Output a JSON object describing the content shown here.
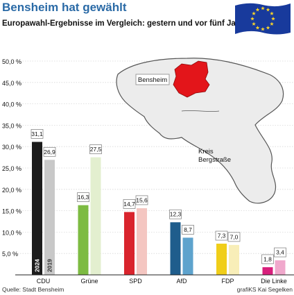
{
  "title": "Bensheim hat gewählt",
  "subtitle": "Europawahl-Ergebnisse im Vergleich: gestern und vor fünf Jahren",
  "flag_icon": "eu-flag-icon",
  "map": {
    "city_label": "Bensheim",
    "district_label_line1": "Kreis",
    "district_label_line2": "Bergstraße",
    "colors": {
      "district": "#ececec",
      "district_outline": "#555555",
      "city": "#e3151a"
    }
  },
  "source_left": "Quelle: Stadt Bensheim",
  "source_right": "grafiKS Kai Segelken",
  "colors": {
    "title": "#2a6aa6",
    "grid": "#d8d8d8"
  },
  "chart_data": {
    "type": "bar",
    "categories": [
      "CDU",
      "Grüne",
      "SPD",
      "AfD",
      "FDP",
      "Die Linke"
    ],
    "series": [
      {
        "name": "2024",
        "values": [
          31.1,
          16.3,
          14.7,
          12.3,
          7.3,
          1.8
        ],
        "colors": [
          "#1c1c1c",
          "#7dbb42",
          "#d9242d",
          "#1f5d8c",
          "#f0ce19",
          "#d8207c"
        ]
      },
      {
        "name": "2019",
        "values": [
          26.9,
          27.5,
          15.6,
          8.7,
          7.0,
          3.4
        ],
        "colors": [
          "#c8c8c8",
          "#e3efcf",
          "#f4c6c1",
          "#5ea3cd",
          "#f8eeb8",
          "#f0a8cc"
        ]
      }
    ],
    "value_labels": [
      [
        "31,1",
        "16,3",
        "14,7",
        "12,3",
        "7,3",
        "1,8"
      ],
      [
        "26,9",
        "27,5",
        "15,6",
        "8,7",
        "7,0",
        "3,4"
      ]
    ],
    "yticks": [
      5,
      10,
      15,
      20,
      25,
      30,
      35,
      40,
      45,
      50
    ],
    "ytick_labels": [
      "5,0 %",
      "10,0 %",
      "15,0 %",
      "20,0 %",
      "25,0 %",
      "30,0 %",
      "35,0 %",
      "40,0 %",
      "45,0 %",
      "50,0 %"
    ],
    "ylim": [
      0,
      50
    ],
    "grid": true,
    "legend": "inside-first-bars"
  }
}
